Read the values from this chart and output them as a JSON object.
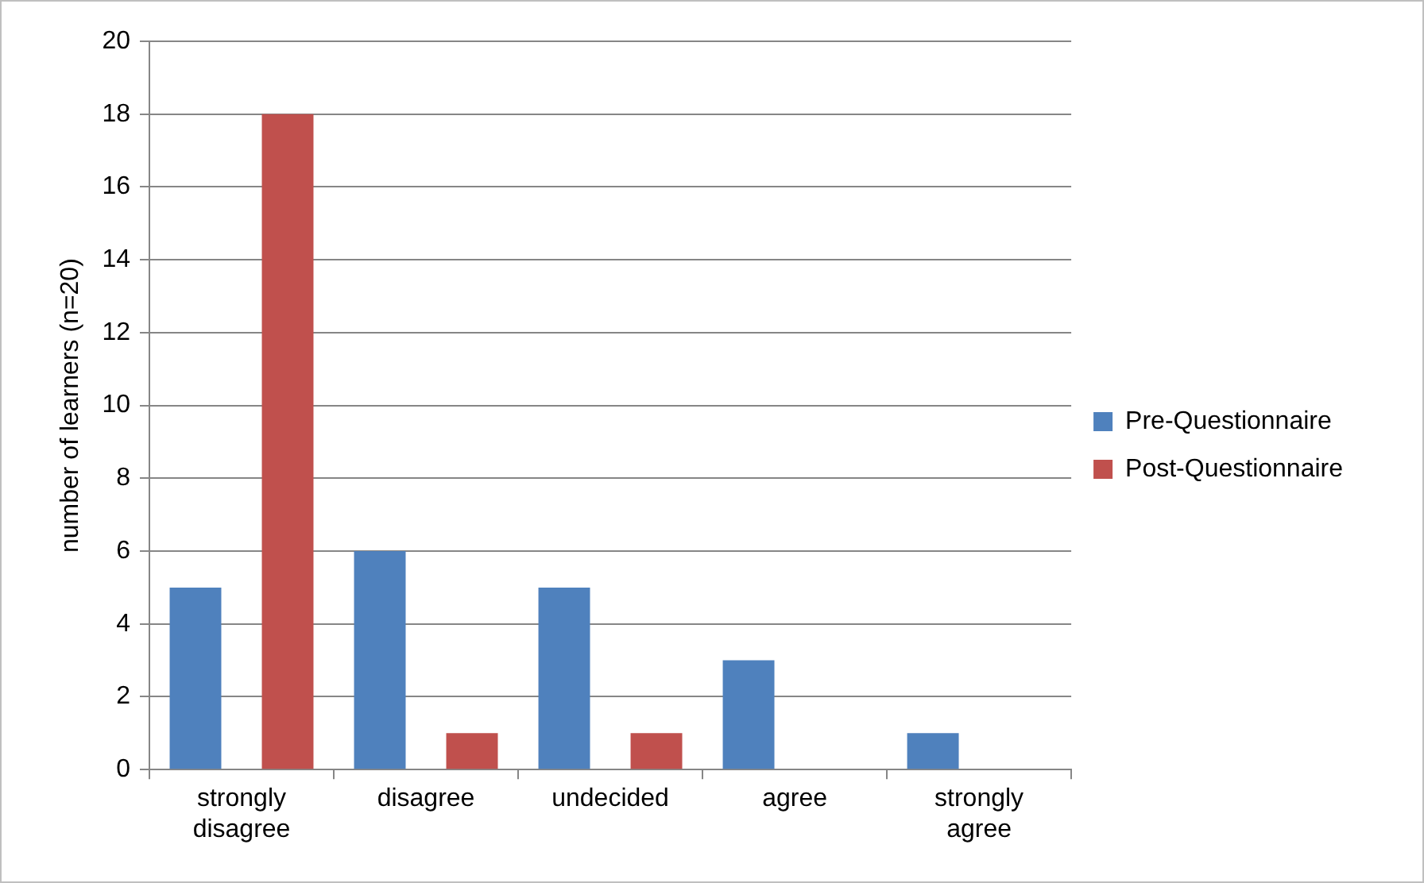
{
  "chart_data": {
    "type": "bar",
    "ylabel": "number of learners (n=20)",
    "categories": [
      "strongly disagree",
      "disagree",
      "undecided",
      "agree",
      "strongly agree"
    ],
    "series": [
      {
        "name": "Pre-Questionnaire",
        "color": "#4f81bd",
        "values": [
          5,
          6,
          5,
          3,
          1
        ]
      },
      {
        "name": "Post-Questionnaire",
        "color": "#c0504d",
        "values": [
          18,
          1,
          1,
          0,
          0
        ]
      }
    ],
    "ylim": [
      0,
      20
    ],
    "yticks": [
      0,
      2,
      4,
      6,
      8,
      10,
      12,
      14,
      16,
      18,
      20
    ],
    "grid": "y",
    "legend": "right"
  }
}
